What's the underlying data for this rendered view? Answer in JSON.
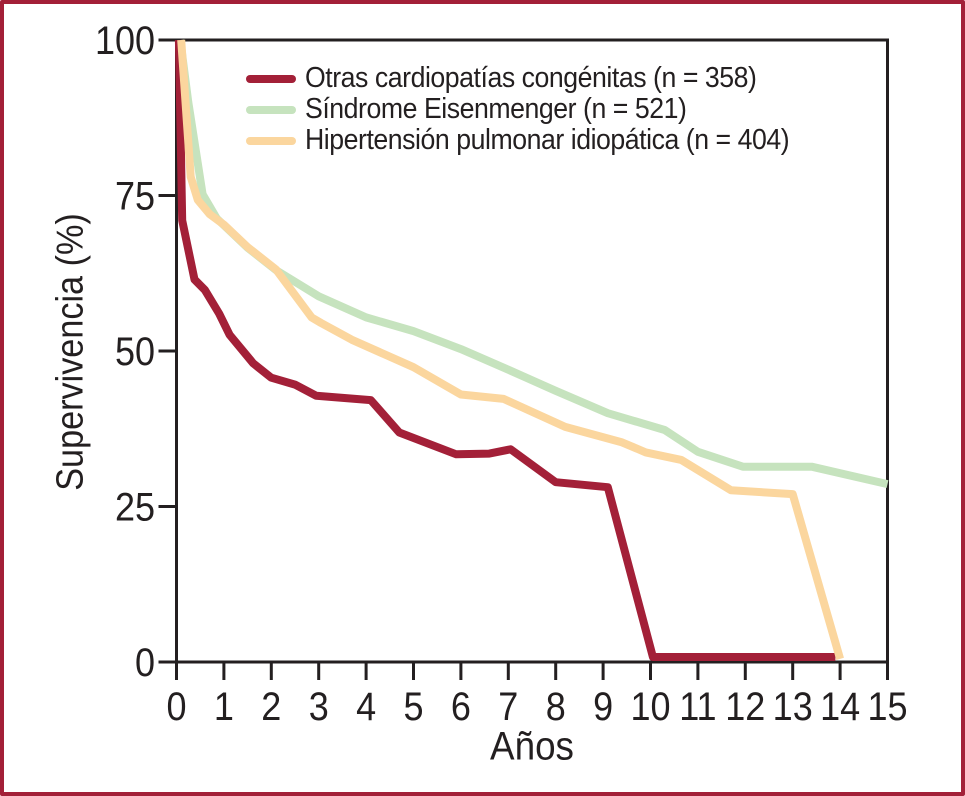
{
  "figure": {
    "background": "#FFFFFF",
    "frame_border_color": "#A32038",
    "axis_color": "#231F20",
    "text_color": "#231F20"
  },
  "chart_data": {
    "type": "line",
    "title": "",
    "xlabel": "Años",
    "ylabel": "Supervivencia (%)",
    "xlim": [
      0,
      15
    ],
    "ylim": [
      0,
      100
    ],
    "x_ticks": [
      0,
      1,
      2,
      3,
      4,
      5,
      6,
      7,
      8,
      9,
      10,
      11,
      12,
      13,
      14,
      15
    ],
    "y_ticks": [
      0,
      25,
      50,
      75,
      100
    ],
    "grid": false,
    "legend_position": "top-left-inside",
    "draw_order": [
      1,
      0,
      2
    ],
    "series": [
      {
        "name": "Otras cardiopatías congénitas (n = 358)",
        "color": "#A32038",
        "points": [
          [
            0.05,
            100
          ],
          [
            0.12,
            71
          ],
          [
            0.38,
            61.5
          ],
          [
            0.6,
            59.8
          ],
          [
            0.9,
            56
          ],
          [
            1.12,
            52.6
          ],
          [
            1.62,
            48
          ],
          [
            2,
            45.7
          ],
          [
            2.5,
            44.6
          ],
          [
            2.95,
            42.8
          ],
          [
            4.1,
            42.1
          ],
          [
            4.7,
            36.9
          ],
          [
            5.9,
            33.4
          ],
          [
            6.6,
            33.5
          ],
          [
            7.05,
            34.2
          ],
          [
            8,
            28.9
          ],
          [
            9.1,
            28.1
          ],
          [
            10.05,
            0.8
          ],
          [
            13.9,
            0.8
          ]
        ]
      },
      {
        "name": "Síndrome Eisenmenger (n = 521)",
        "color": "#C6E3BE",
        "points": [
          [
            0.08,
            100
          ],
          [
            0.25,
            90
          ],
          [
            0.55,
            75.2
          ],
          [
            0.85,
            71.3
          ],
          [
            1.5,
            66.6
          ],
          [
            2.1,
            63
          ],
          [
            3,
            58.8
          ],
          [
            4,
            55.4
          ],
          [
            5,
            53.2
          ],
          [
            6,
            50.3
          ],
          [
            7,
            47
          ],
          [
            8,
            43.6
          ],
          [
            9.1,
            40
          ],
          [
            10.3,
            37.3
          ],
          [
            11,
            33.8
          ],
          [
            11.95,
            31.4
          ],
          [
            13.4,
            31.4
          ],
          [
            15,
            28.6
          ]
        ]
      },
      {
        "name": "Hipertensión pulmonar idiopática (n = 404)",
        "color": "#FBD69E",
        "points": [
          [
            0.1,
            100
          ],
          [
            0.3,
            78
          ],
          [
            0.45,
            74.3
          ],
          [
            0.7,
            72
          ],
          [
            1,
            70.3
          ],
          [
            1.5,
            66.7
          ],
          [
            2.1,
            63.1
          ],
          [
            2.85,
            55.4
          ],
          [
            3.05,
            54.5
          ],
          [
            3.7,
            51.8
          ],
          [
            5,
            47.4
          ],
          [
            6,
            43
          ],
          [
            6.9,
            42.3
          ],
          [
            8.2,
            37.8
          ],
          [
            9.4,
            35.3
          ],
          [
            9.9,
            33.7
          ],
          [
            10.65,
            32.5
          ],
          [
            11.7,
            27.6
          ],
          [
            13,
            27
          ],
          [
            14,
            0.5
          ]
        ]
      }
    ]
  }
}
